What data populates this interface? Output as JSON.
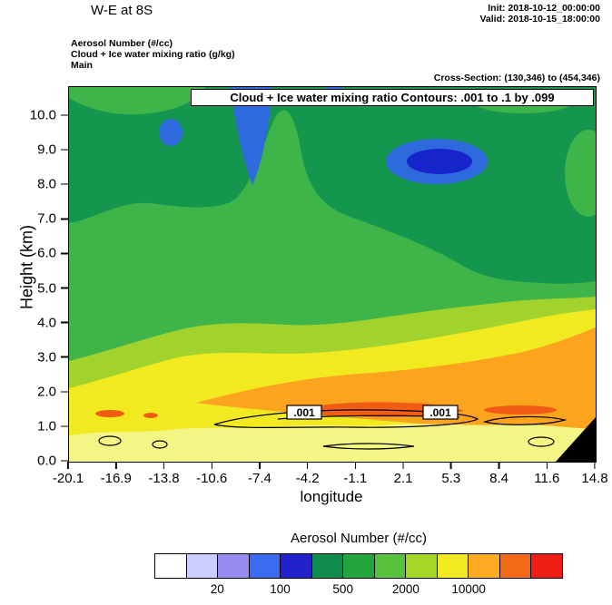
{
  "header": {
    "title": "W-E at 8S",
    "init": "Init: 2018-10-12_00:00:00",
    "valid": "Valid: 2018-10-15_18:00:00",
    "layer_lines": [
      "Aerosol Number  (#/cc)",
      "Cloud + Ice water mixing ratio  (g/kg)",
      "Main"
    ],
    "cross_section": "Cross-Section: (130,346) to (454,346)"
  },
  "chart_data": {
    "type": "heatmap",
    "subtype": "filled-contour vertical cross-section (W-E at 8S)",
    "title": "Cloud + Ice water mixing ratio Contours: .001 to .1 by .099",
    "xlabel": "longitude",
    "ylabel": "Height (km)",
    "x_ticks": [
      "-20.1",
      "-16.9",
      "-13.8",
      "-10.6",
      "-7.4",
      "-4.2",
      "-1.1",
      "2.1",
      "5.3",
      "8.4",
      "11.6",
      "14.8"
    ],
    "y_ticks": [
      "0.0",
      "1.0",
      "2.0",
      "3.0",
      "4.0",
      "5.0",
      "6.0",
      "7.0",
      "8.0",
      "9.0",
      "10.0"
    ],
    "xlim": [
      -20.1,
      14.8
    ],
    "ylim": [
      0.0,
      10.8
    ],
    "grid": false,
    "contour_labels": [
      ".001",
      ".001"
    ],
    "colorbar": {
      "title": "Aerosol Number  (#/cc)",
      "position": "bottom",
      "tick_labels": [
        "20",
        "100",
        "500",
        "2000",
        "10000"
      ],
      "cell_colors": [
        "#ffffff",
        "#ccccff",
        "#998cf0",
        "#3a6cf2",
        "#2222cc",
        "#0e8c4e",
        "#22a63c",
        "#58c23c",
        "#a6d626",
        "#f2ea1e",
        "#fcaa20",
        "#f26c18",
        "#ee1d16"
      ]
    },
    "field_colors": {
      "dark_green": "#14964e",
      "green": "#3eb449",
      "light_green": "#a2d32c",
      "yellow": "#f2ea20",
      "pale_yellow": "#f3f584",
      "orange": "#fca41e",
      "dark_orange": "#f15c14",
      "blue": "#2e6ade",
      "dark_blue": "#1626cc",
      "terrain": "#000000",
      "contour_line": "#000000",
      "box_fill": "#ffffff"
    },
    "field_regions": [
      {
        "band": "5-10.8 km",
        "value": "dark green, approx 200-500 #/cc, with blue patches approx 50-200 #/cc near 8-10.5 km"
      },
      {
        "band": "3.5-6 km",
        "value": "green, approx 500-2000 #/cc"
      },
      {
        "band": "2.5-4 km",
        "value": "yellow-green, approx 2000-5000 #/cc"
      },
      {
        "band": "0-3 km",
        "value": "yellow, approx 5000-10000 #/cc; pale yellow below ~1 km"
      },
      {
        "band": "1-2.5 km center/east",
        "value": "orange, approx 10000-20000 #/cc with dark-orange streaks >20000 near 1.5 km"
      },
      {
        "band": "cloud contour",
        "value": ".001 g/kg closed contours near 0.5-1.5 km between lon -9 and 6"
      },
      {
        "band": "bottom-right corner",
        "value": "black terrain mask near lon 13-14.8"
      }
    ]
  }
}
